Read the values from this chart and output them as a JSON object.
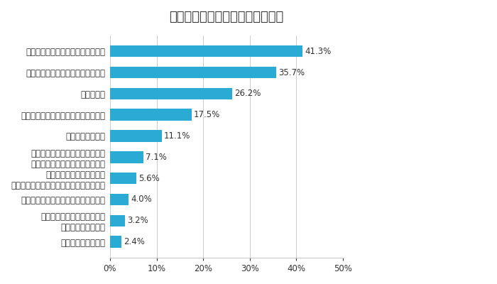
{
  "title": "慶弔・災害見舞金の満足度の理由",
  "categories": [
    "従業員に対して優しい会社と感じる",
    "突然の出費を埋められるので助かる",
    "額が少ない",
    "慶弔を個人で出す金額を悩まずに済む",
    "申請手続きが手間",
    "結婚しない・籍を入れないなど、\nいろいろなケースがあり、不平等",
    "滅多にもらうことがないが\nその分給与から引かれていると思うと懸念",
    "制度が形骸化して、支給されていない",
    "お祝いやお香典があるため、\n慶弔は不要と感じる",
    "その他（具体的に）"
  ],
  "values": [
    41.3,
    35.7,
    26.2,
    17.5,
    11.1,
    7.1,
    5.6,
    4.0,
    3.2,
    2.4
  ],
  "bar_color": "#29ABD4",
  "text_color": "#333333",
  "label_color": "#29ABD4",
  "background_color": "#ffffff",
  "xlim": [
    0,
    50
  ],
  "xtick_labels": [
    "0%",
    "10%",
    "20%",
    "30%",
    "40%",
    "50%"
  ],
  "xtick_values": [
    0,
    10,
    20,
    30,
    40,
    50
  ],
  "title_fontsize": 13,
  "label_fontsize": 8.5,
  "value_fontsize": 8.5
}
